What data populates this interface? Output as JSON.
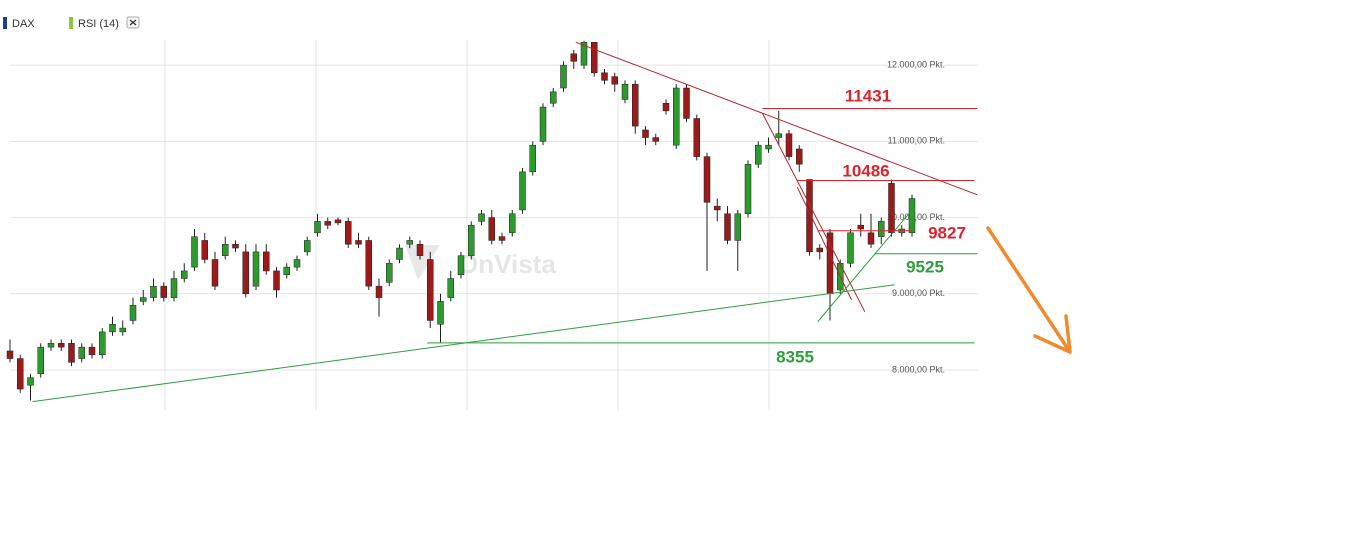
{
  "chart_data": {
    "type": "candlestick",
    "legend": [
      {
        "name": "DAX",
        "color": "#1a3f8f"
      },
      {
        "name": "RSI (14)",
        "color": "#8cc63f"
      }
    ],
    "watermark": "OnVista",
    "up_color": "#2d9a2d",
    "down_color": "#9b1b1b",
    "ylim": [
      7475,
      12330
    ],
    "yticks": [
      {
        "value": 8000,
        "label": "8.000,00 Pkt."
      },
      {
        "value": 9000,
        "label": "9.000,00 Pkt."
      },
      {
        "value": 10000,
        "label": "10.000,00 Pkt."
      },
      {
        "value": 11000,
        "label": "11.000,00 Pkt."
      },
      {
        "value": 12000,
        "label": "12.000,00 Pkt."
      }
    ],
    "grid": true,
    "open": [
      8250,
      8150,
      7800,
      7950,
      8300,
      8350,
      8350,
      8150,
      8300,
      8200,
      8500,
      8500,
      8650,
      8900,
      8950,
      9100,
      8950,
      9200,
      9350,
      9700,
      9450,
      9500,
      9650,
      9550,
      9100,
      9550,
      9300,
      9250,
      9350,
      9550,
      9800,
      9950,
      9970,
      9950,
      9700,
      9700,
      9100,
      9150,
      9450,
      9650,
      9650,
      9450,
      8600,
      8950,
      9250,
      9500,
      9950,
      10000,
      9750,
      9800,
      10100,
      10600,
      11000,
      11500,
      11700,
      12150,
      12000,
      12300,
      11900,
      11850,
      11550,
      11750,
      11150,
      11050,
      11500,
      10950,
      11700,
      11300,
      10800,
      10150,
      10050,
      9700,
      10050,
      10700,
      10900,
      11050,
      11100,
      10900,
      10500,
      9600,
      9800,
      9050,
      9400,
      9900,
      9800,
      9750,
      10450,
      9800,
      9800
    ],
    "close": [
      8150,
      7750,
      7900,
      8300,
      8350,
      8300,
      8100,
      8300,
      8200,
      8500,
      8600,
      8550,
      8850,
      8950,
      9100,
      8950,
      9200,
      9300,
      9750,
      9450,
      9100,
      9650,
      9600,
      9000,
      9550,
      9300,
      9050,
      9350,
      9450,
      9700,
      9950,
      9900,
      9930,
      9650,
      9650,
      9100,
      8950,
      9400,
      9600,
      9700,
      9500,
      8650,
      8900,
      9200,
      9500,
      9900,
      10050,
      9700,
      9700,
      10050,
      10600,
      10950,
      11450,
      11650,
      12000,
      12050,
      12300,
      11900,
      11800,
      11750,
      11750,
      11200,
      11050,
      11000,
      11400,
      11700,
      11300,
      10800,
      10200,
      10100,
      9700,
      10050,
      10700,
      10950,
      10950,
      11100,
      10800,
      10700,
      9550,
      9550,
      9000,
      9400,
      9800,
      9850,
      9650,
      9950,
      9800,
      9850,
      10250
    ],
    "high": [
      8400,
      8200,
      7950,
      8350,
      8400,
      8400,
      8400,
      8350,
      8350,
      8550,
      8700,
      8650,
      8950,
      9050,
      9200,
      9150,
      9300,
      9400,
      9850,
      9800,
      9550,
      9750,
      9700,
      9650,
      9650,
      9650,
      9350,
      9400,
      9500,
      9750,
      10050,
      10000,
      10000,
      10000,
      9800,
      9750,
      9200,
      9450,
      9650,
      9750,
      9700,
      9550,
      9000,
      9300,
      9550,
      9950,
      10100,
      10100,
      9800,
      10100,
      10650,
      11000,
      11500,
      11700,
      12050,
      12200,
      12320,
      12300,
      11950,
      11900,
      11800,
      11800,
      11200,
      11100,
      11550,
      11750,
      11750,
      11350,
      10850,
      10250,
      10150,
      10100,
      10750,
      11000,
      11050,
      11400,
      11150,
      10950,
      10500,
      9650,
      9850,
      9450,
      9850,
      10050,
      10050,
      10000,
      10500,
      9900,
      10300
    ],
    "low": [
      8100,
      7700,
      7600,
      7900,
      8250,
      8250,
      8050,
      8100,
      8150,
      8150,
      8450,
      8450,
      8600,
      8850,
      8900,
      8900,
      8900,
      9150,
      9300,
      9400,
      9050,
      9450,
      9550,
      8950,
      9050,
      9250,
      8950,
      9200,
      9300,
      9500,
      9750,
      9850,
      9900,
      9600,
      9600,
      9050,
      8700,
      9100,
      9400,
      9600,
      9450,
      8550,
      8355,
      8900,
      9200,
      9450,
      9900,
      9650,
      9650,
      9750,
      10050,
      10550,
      10950,
      11450,
      11650,
      11950,
      11950,
      11850,
      11750,
      11650,
      11500,
      11100,
      10950,
      10950,
      11350,
      10900,
      11250,
      10750,
      9300,
      9950,
      9650,
      9300,
      10000,
      10650,
      10850,
      10950,
      10750,
      10600,
      9500,
      9450,
      8650,
      9000,
      9350,
      9750,
      9600,
      9650,
      9750,
      9750,
      9750
    ],
    "levels": [
      {
        "value": 11431,
        "color": "#d9252b",
        "x": [
          73.4,
          94.4
        ]
      },
      {
        "value": 10486,
        "color": "#d9252b",
        "x": [
          76.8,
          94.1
        ]
      },
      {
        "value": 9827,
        "color": "#d9252b",
        "x": [
          78.8,
          88
        ]
      },
      {
        "value": 9525,
        "color": "#2e9e3e",
        "x": [
          84.4,
          94.4
        ]
      },
      {
        "value": 8355,
        "color": "#2e9e3e",
        "x": [
          40.7,
          94.1
        ]
      }
    ],
    "trendlines": [
      {
        "color": "#b3262e",
        "x": [
          55.2,
          94.4
        ],
        "y": [
          12300,
          10297
        ]
      },
      {
        "color": "#b3262e",
        "x": [
          73.4,
          83.4
        ],
        "y": [
          11371,
          8764
        ]
      },
      {
        "color": "#b3262e",
        "x": [
          76.8,
          82.1
        ],
        "y": [
          10400,
          8920
        ]
      },
      {
        "color": "#2e9e3e",
        "x": [
          2.2,
          86.3
        ],
        "y": [
          7585,
          9118
        ]
      },
      {
        "color": "#2e9e3e",
        "x": [
          78.8,
          88
        ],
        "y": [
          8633,
          10100
        ]
      }
    ]
  }
}
